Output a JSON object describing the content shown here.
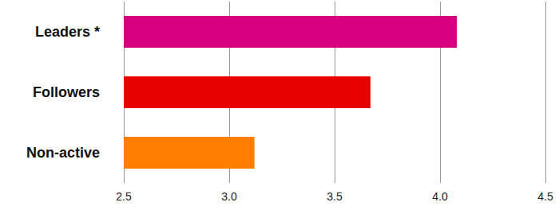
{
  "chart_data": {
    "type": "bar",
    "orientation": "horizontal",
    "categories": [
      "Leaders *",
      "Followers",
      "Non-active"
    ],
    "values": [
      4.08,
      3.67,
      3.12
    ],
    "colors": [
      "#d6007f",
      "#e60000",
      "#ff7f00"
    ],
    "xlim": [
      2.5,
      4.5
    ],
    "xticks": [
      2.5,
      {
        "value": 3,
        "label": "3.0"
      },
      3.5,
      {
        "value": 4,
        "label": "4.0"
      },
      4.5
    ],
    "grid": true
  }
}
